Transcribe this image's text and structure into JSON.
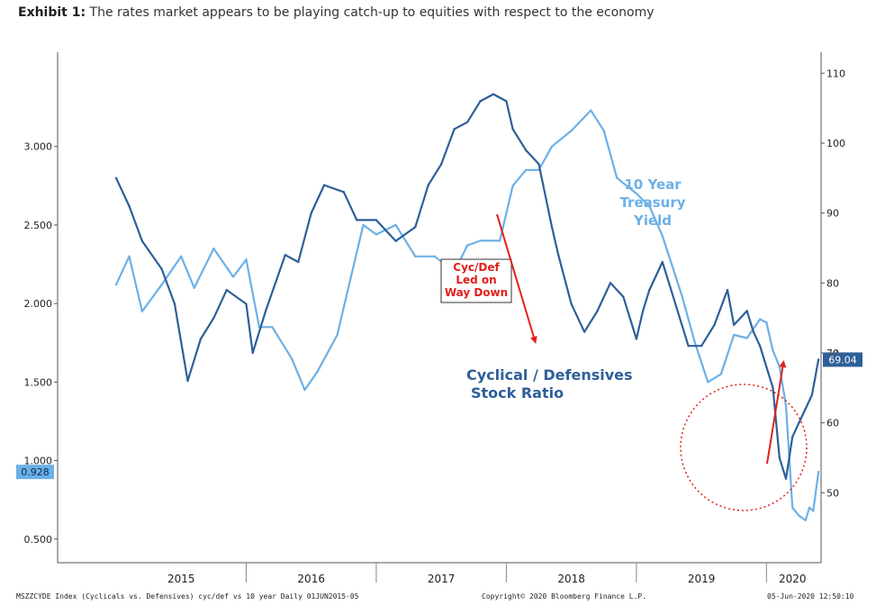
{
  "exhibit": {
    "label": "Exhibit 1:",
    "text": "The rates market appears to be playing catch-up to equities with respect to the economy"
  },
  "chart_data": {
    "type": "line",
    "title": "The rates market appears to be playing catch-up to equities with respect to the economy",
    "x_labels": [
      "2015",
      "2016",
      "2017",
      "2018",
      "2019",
      "2020"
    ],
    "x_range": [
      2014.55,
      2020.42
    ],
    "y_left": {
      "range": [
        0.35,
        3.6
      ],
      "ticks": [
        "0.500",
        "1.000",
        "1.500",
        "2.000",
        "2.500",
        "3.000"
      ],
      "tick_values": [
        0.5,
        1.0,
        1.5,
        2.0,
        2.5,
        3.0
      ]
    },
    "y_right": {
      "range": [
        40,
        113
      ],
      "ticks": [
        "50",
        "60",
        "70",
        "80",
        "90",
        "100",
        "110"
      ],
      "tick_values": [
        50,
        60,
        70,
        80,
        90,
        100,
        110
      ]
    },
    "series": [
      {
        "name": "10 Year Treasury Yield",
        "axis": "left",
        "color": "#6cb0e6",
        "x": [
          2015.0,
          2015.1,
          2015.2,
          2015.35,
          2015.5,
          2015.6,
          2015.75,
          2015.9,
          2016.0,
          2016.1,
          2016.2,
          2016.35,
          2016.45,
          2016.55,
          2016.7,
          2016.8,
          2016.9,
          2017.0,
          2017.15,
          2017.3,
          2017.45,
          2017.6,
          2017.7,
          2017.8,
          2017.95,
          2018.05,
          2018.15,
          2018.25,
          2018.35,
          2018.5,
          2018.65,
          2018.75,
          2018.85,
          2019.0,
          2019.1,
          2019.2,
          2019.35,
          2019.45,
          2019.55,
          2019.65,
          2019.75,
          2019.85,
          2019.95,
          2020.0,
          2020.05,
          2020.1,
          2020.15,
          2020.2,
          2020.25,
          2020.3,
          2020.33,
          2020.36,
          2020.4
        ],
        "y": [
          2.12,
          2.3,
          1.95,
          2.12,
          2.3,
          2.1,
          2.35,
          2.17,
          2.28,
          1.85,
          1.85,
          1.65,
          1.45,
          1.57,
          1.8,
          2.15,
          2.5,
          2.44,
          2.5,
          2.3,
          2.3,
          2.2,
          2.37,
          2.4,
          2.4,
          2.75,
          2.85,
          2.85,
          3.0,
          3.1,
          3.23,
          3.1,
          2.8,
          2.7,
          2.62,
          2.43,
          2.05,
          1.75,
          1.5,
          1.55,
          1.8,
          1.78,
          1.9,
          1.88,
          1.7,
          1.6,
          1.35,
          0.7,
          0.65,
          0.62,
          0.7,
          0.68,
          0.928
        ]
      },
      {
        "name": "Cyclical / Defensives Stock Ratio",
        "axis": "right",
        "color": "#2e5f99",
        "x": [
          2015.0,
          2015.1,
          2015.2,
          2015.35,
          2015.45,
          2015.55,
          2015.65,
          2015.75,
          2015.85,
          2016.0,
          2016.05,
          2016.15,
          2016.3,
          2016.4,
          2016.5,
          2016.6,
          2016.75,
          2016.85,
          2017.0,
          2017.15,
          2017.3,
          2017.4,
          2017.5,
          2017.6,
          2017.7,
          2017.8,
          2017.9,
          2018.0,
          2018.05,
          2018.15,
          2018.25,
          2018.35,
          2018.4,
          2018.5,
          2018.6,
          2018.7,
          2018.8,
          2018.9,
          2019.0,
          2019.05,
          2019.1,
          2019.2,
          2019.3,
          2019.4,
          2019.5,
          2019.6,
          2019.7,
          2019.75,
          2019.85,
          2019.9,
          2019.95,
          2020.0,
          2020.05,
          2020.1,
          2020.15,
          2020.2,
          2020.25,
          2020.3,
          2020.35,
          2020.4
        ],
        "y": [
          95,
          91,
          86,
          82,
          77,
          66,
          72,
          75,
          79,
          77,
          70,
          76,
          84,
          83,
          90,
          94,
          93,
          89,
          89,
          86,
          88,
          94,
          97,
          102,
          103,
          106,
          107,
          106,
          102,
          99,
          97,
          88,
          84,
          77,
          73,
          76,
          80,
          78,
          72,
          76,
          79,
          83,
          77,
          71,
          71,
          74,
          79,
          74,
          76,
          73,
          71,
          68,
          65,
          55,
          52,
          58,
          60,
          62,
          64,
          69.04
        ]
      }
    ],
    "last_values": {
      "left": "0.928",
      "right": "69.04"
    },
    "annotations": {
      "treasury_label": [
        "10 Year",
        "Treasury",
        "Yield"
      ],
      "ratio_label": [
        "Cyclical / Defensives",
        "Stock Ratio"
      ],
      "callout": [
        "Cyc/Def",
        "Led on",
        "Way Down"
      ],
      "marker_70": "70"
    }
  },
  "footer": {
    "left": "MSZZCYDE Index (Cyclicals vs. Defensives) cyc/def vs 10 year  Daily 01JUN2015-05",
    "center": "Copyright© 2020 Bloomberg Finance L.P.",
    "right": "05-Jun-2020 12:50:10"
  },
  "colors": {
    "light_blue": "#6cb0e6",
    "dark_blue": "#2e5f99",
    "red": "#e0201c",
    "axis": "#555555"
  }
}
